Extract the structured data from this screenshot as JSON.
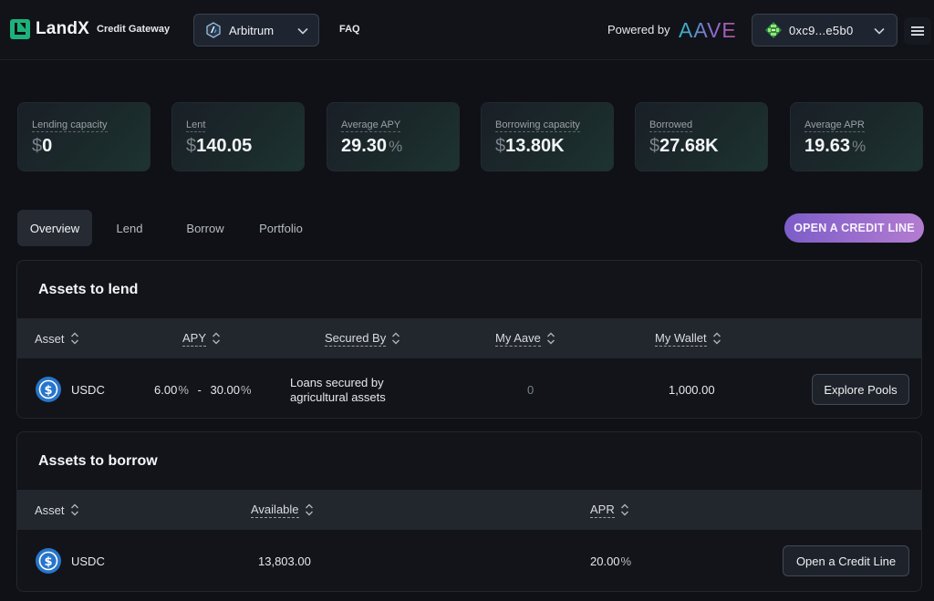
{
  "header": {
    "logo_text": "LandX",
    "gateway_label": "Credit Gateway",
    "network": "Arbitrum",
    "faq": "FAQ",
    "powered_by": "Powered by",
    "aave_logo": "AAVE",
    "wallet": "0xc9...e5b0",
    "colors": {
      "brand": "#1db27a",
      "aave_start": "#2ebac6",
      "aave_end": "#b6509e"
    }
  },
  "stats": [
    {
      "label": "Lending capacity",
      "prefix": "$",
      "value": "0",
      "suffix": ""
    },
    {
      "label": "Lent",
      "prefix": "$",
      "value": "140.05",
      "suffix": ""
    },
    {
      "label": "Average APY",
      "prefix": "",
      "value": "29.30",
      "suffix": "%"
    },
    {
      "label": "Borrowing capacity",
      "prefix": "$",
      "value": "13.80K",
      "suffix": ""
    },
    {
      "label": "Borrowed",
      "prefix": "$",
      "value": "27.68K",
      "suffix": ""
    },
    {
      "label": "Average APR",
      "prefix": "",
      "value": "19.63",
      "suffix": "%"
    }
  ],
  "tabs": [
    "Overview",
    "Lend",
    "Borrow",
    "Portfolio"
  ],
  "open_credit_line": "OPEN A CREDIT LINE",
  "lend": {
    "title": "Assets to lend",
    "columns": [
      "Asset",
      "APY",
      "Secured By",
      "My Aave",
      "My Wallet"
    ],
    "row": {
      "asset": "USDC",
      "apy_min": "6.00",
      "apy_sep": "-",
      "apy_max": "30.00",
      "pct": "%",
      "secured_line1": "Loans secured by",
      "secured_line2": "agricultural assets",
      "my_aave": "0",
      "my_wallet": "1,000.00",
      "action": "Explore Pools"
    }
  },
  "borrow": {
    "title": "Assets to borrow",
    "columns": [
      "Asset",
      "Available",
      "APR"
    ],
    "row": {
      "asset": "USDC",
      "available": "13,803.00",
      "apr": "20.00",
      "pct": "%",
      "action": "Open a Credit Line"
    }
  }
}
